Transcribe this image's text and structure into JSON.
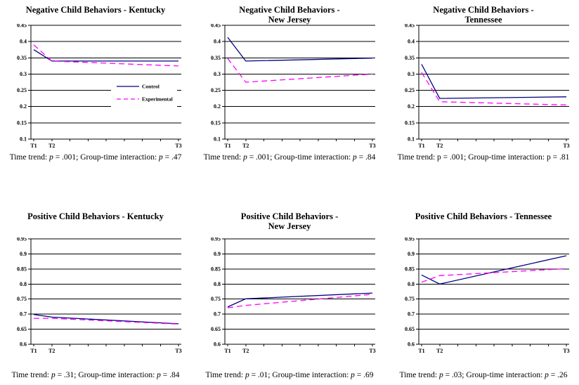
{
  "page": {
    "background": "#ffffff"
  },
  "colors": {
    "control": "#000080",
    "experimental": "#ff00ff",
    "axis": "#000000",
    "plot_background": "#ffffff"
  },
  "legend": {
    "position": "middle-right-of-first-chart",
    "entries": [
      {
        "label": "Control",
        "style": "solid",
        "color": "#000080"
      },
      {
        "label": "Experimental",
        "style": "dashed",
        "color": "#ff00ff"
      }
    ]
  },
  "chart_data": [
    {
      "type": "line",
      "title": "Negative Child Behaviors - Kentucky",
      "categories": [
        "T1",
        "T2",
        "T3"
      ],
      "ylim": [
        0.1,
        0.45
      ],
      "ytick_step": 0.05,
      "ytick_labels": [
        "0.45",
        "0.4",
        "0.35",
        "0.3",
        "0.25",
        "0.2",
        "0.15",
        "0.1"
      ],
      "grid": true,
      "legend_visible": true,
      "series": [
        {
          "name": "Control",
          "color": "#000080",
          "style": "solid",
          "values": [
            0.375,
            0.34,
            0.34
          ]
        },
        {
          "name": "Experimental",
          "color": "#ff00ff",
          "style": "dashed",
          "values": [
            0.39,
            0.34,
            0.325
          ]
        }
      ],
      "caption_segments": [
        {
          "text": "Time trend: ",
          "italic": false
        },
        {
          "text": "p",
          "italic": true
        },
        {
          "text": " = .001; Group-time interaction: ",
          "italic": false
        },
        {
          "text": "p",
          "italic": true
        },
        {
          "text": " = .47",
          "italic": false
        }
      ]
    },
    {
      "type": "line",
      "title": "Negative Child Behaviors -\nNew Jersey",
      "categories": [
        "T1",
        "T2",
        "T3"
      ],
      "ylim": [
        0.1,
        0.45
      ],
      "ytick_step": 0.05,
      "ytick_labels": [
        "0.45",
        "0.4",
        "0.35",
        "0.3",
        "0.25",
        "0.2",
        "0.15",
        "0.1"
      ],
      "grid": true,
      "legend_visible": false,
      "series": [
        {
          "name": "Control",
          "color": "#000080",
          "style": "solid",
          "values": [
            0.413,
            0.34,
            0.349
          ]
        },
        {
          "name": "Experimental",
          "color": "#ff00ff",
          "style": "dashed",
          "values": [
            0.348,
            0.275,
            0.3
          ]
        }
      ],
      "caption_segments": [
        {
          "text": "Time trend: ",
          "italic": false
        },
        {
          "text": "p",
          "italic": true
        },
        {
          "text": " = .001; Group-time interaction: ",
          "italic": false
        },
        {
          "text": "p",
          "italic": true
        },
        {
          "text": " = .84",
          "italic": false
        }
      ]
    },
    {
      "type": "line",
      "title": "Negative Child Behaviors -\nTennessee",
      "categories": [
        "T1",
        "T2",
        "T3"
      ],
      "ylim": [
        0.1,
        0.45
      ],
      "ytick_step": 0.05,
      "ytick_labels": [
        "0.45",
        "0.4",
        "0.35",
        "0.3",
        "0.25",
        "0.2",
        "0.15",
        "0.1"
      ],
      "grid": true,
      "legend_visible": false,
      "series": [
        {
          "name": "Control",
          "color": "#000080",
          "style": "solid",
          "values": [
            0.33,
            0.225,
            0.23
          ]
        },
        {
          "name": "Experimental",
          "color": "#ff00ff",
          "style": "dashed",
          "values": [
            0.305,
            0.215,
            0.205
          ]
        }
      ],
      "caption_segments": [
        {
          "text": "Time trend: p = .001; Group-time interaction: p = .81",
          "italic": false
        }
      ]
    },
    {
      "type": "line",
      "title": "Positive Child Behaviors - Kentucky",
      "categories": [
        "T1",
        "T2",
        "T3"
      ],
      "ylim": [
        0.6,
        0.95
      ],
      "ytick_step": 0.05,
      "ytick_labels": [
        "0.95",
        "0.9",
        "0.85",
        "0.8",
        "0.75",
        "0.7",
        "0.65",
        "0.6"
      ],
      "grid": true,
      "legend_visible": false,
      "series": [
        {
          "name": "Control",
          "color": "#000080",
          "style": "solid",
          "values": [
            0.699,
            0.69,
            0.668
          ]
        },
        {
          "name": "Experimental",
          "color": "#ff00ff",
          "style": "dashed",
          "values": [
            0.686,
            0.686,
            0.667
          ]
        }
      ],
      "caption_segments": [
        {
          "text": "Time trend: ",
          "italic": false
        },
        {
          "text": "p",
          "italic": true
        },
        {
          "text": " = .31; Group-time interaction: ",
          "italic": false
        },
        {
          "text": "p",
          "italic": true
        },
        {
          "text": " = .84",
          "italic": false
        }
      ]
    },
    {
      "type": "line",
      "title": "Positive Child Behaviors -\nNew Jersey",
      "categories": [
        "T1",
        "T2",
        "T3"
      ],
      "ylim": [
        0.6,
        0.95
      ],
      "ytick_step": 0.05,
      "ytick_labels": [
        "0.95",
        "0.9",
        "0.85",
        "0.8",
        "0.75",
        "0.7",
        "0.65",
        "0.6"
      ],
      "grid": true,
      "legend_visible": false,
      "series": [
        {
          "name": "Control",
          "color": "#000080",
          "style": "solid",
          "values": [
            0.724,
            0.751,
            0.77
          ]
        },
        {
          "name": "Experimental",
          "color": "#ff00ff",
          "style": "dashed",
          "values": [
            0.721,
            0.729,
            0.766
          ]
        }
      ],
      "caption_segments": [
        {
          "text": "Time trend: ",
          "italic": false
        },
        {
          "text": "p",
          "italic": true
        },
        {
          "text": " = .01; Group-time interaction: ",
          "italic": false
        },
        {
          "text": "p",
          "italic": true
        },
        {
          "text": " = .69",
          "italic": false
        }
      ]
    },
    {
      "type": "line",
      "title": "Positive Child Behaviors - Tennessee",
      "categories": [
        "T1",
        "T2",
        "T3"
      ],
      "ylim": [
        0.6,
        0.95
      ],
      "ytick_step": 0.05,
      "ytick_labels": [
        "0.95",
        "0.9",
        "0.85",
        "0.8",
        "0.75",
        "0.7",
        "0.65",
        "0.6"
      ],
      "grid": true,
      "legend_visible": false,
      "series": [
        {
          "name": "Control",
          "color": "#000080",
          "style": "solid",
          "values": [
            0.83,
            0.8,
            0.894
          ]
        },
        {
          "name": "Experimental",
          "color": "#ff00ff",
          "style": "dashed",
          "values": [
            0.806,
            0.828,
            0.851
          ]
        }
      ],
      "caption_segments": [
        {
          "text": "Time trend: ",
          "italic": false
        },
        {
          "text": "p",
          "italic": true
        },
        {
          "text": " = .03; Group-time interaction: ",
          "italic": false
        },
        {
          "text": "p",
          "italic": true
        },
        {
          "text": " = .26",
          "italic": false
        }
      ]
    }
  ]
}
